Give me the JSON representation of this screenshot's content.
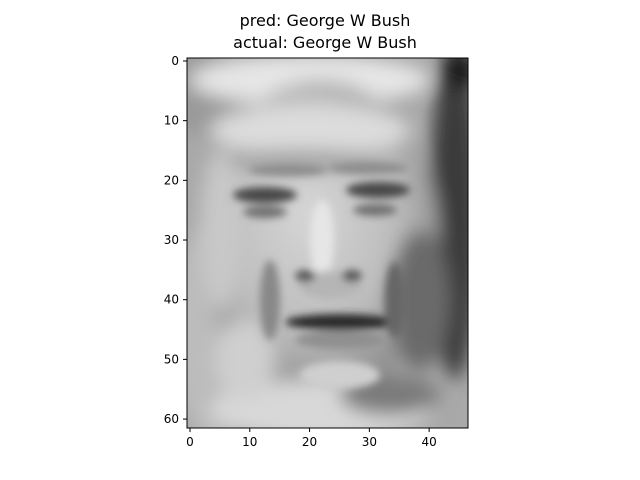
{
  "chart_data": {
    "type": "heatmap",
    "title_lines": [
      "pred: George W Bush",
      "actual: George W Bush"
    ],
    "colormap": "gray",
    "image_shape": [
      62,
      47
    ],
    "xlim": [
      -0.5,
      46.5
    ],
    "ylim": [
      61.5,
      -0.5
    ],
    "x_ticks": [
      0,
      10,
      20,
      30,
      40
    ],
    "y_ticks": [
      0,
      10,
      20,
      30,
      40,
      50,
      60
    ],
    "x_tick_labels": [
      "0",
      "10",
      "20",
      "30",
      "40"
    ],
    "y_tick_labels": [
      "0",
      "10",
      "20",
      "30",
      "40",
      "50",
      "60"
    ],
    "grid": false,
    "legend": "none"
  }
}
